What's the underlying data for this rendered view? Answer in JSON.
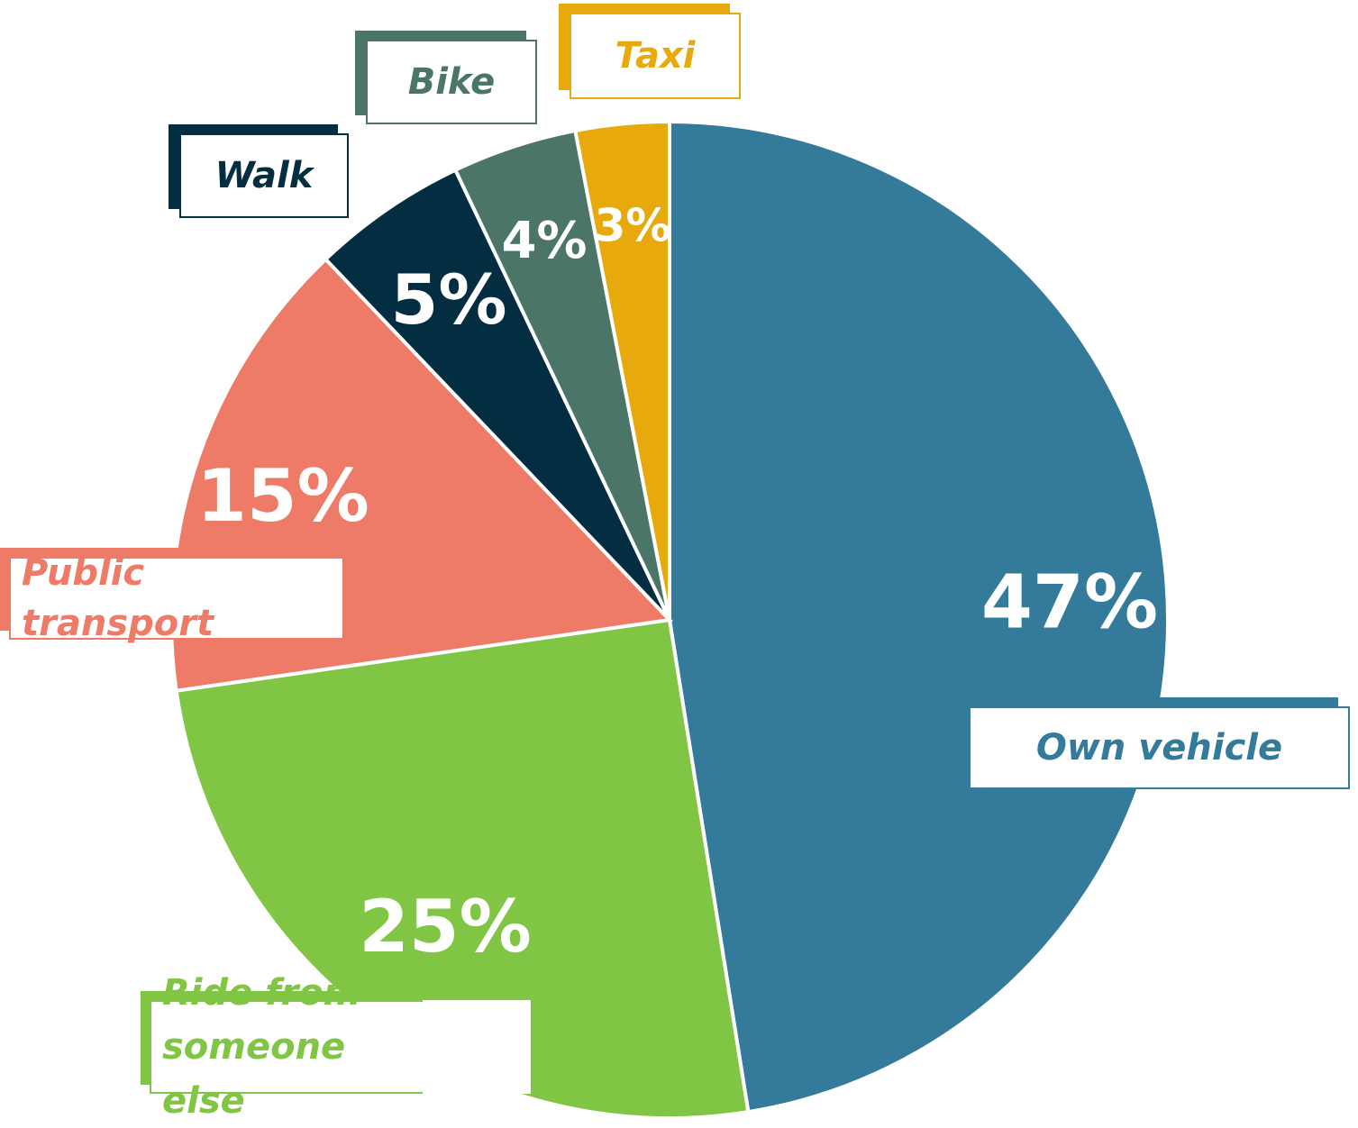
{
  "chart_data": {
    "type": "pie",
    "categories": [
      "Own vehicle",
      "Ride from someone else",
      "Public transport",
      "Walk",
      "Bike",
      "Taxi"
    ],
    "values": [
      47,
      25,
      15,
      5,
      4,
      3
    ],
    "value_labels": [
      "47%",
      "25%",
      "15%",
      "5%",
      "4%",
      "3%"
    ],
    "colors": [
      "#347a9a",
      "#80c644",
      "#ee7b68",
      "#032d40",
      "#4b7568",
      "#e8a90c"
    ],
    "start_angle": 0,
    "direction": "clockwise"
  }
}
